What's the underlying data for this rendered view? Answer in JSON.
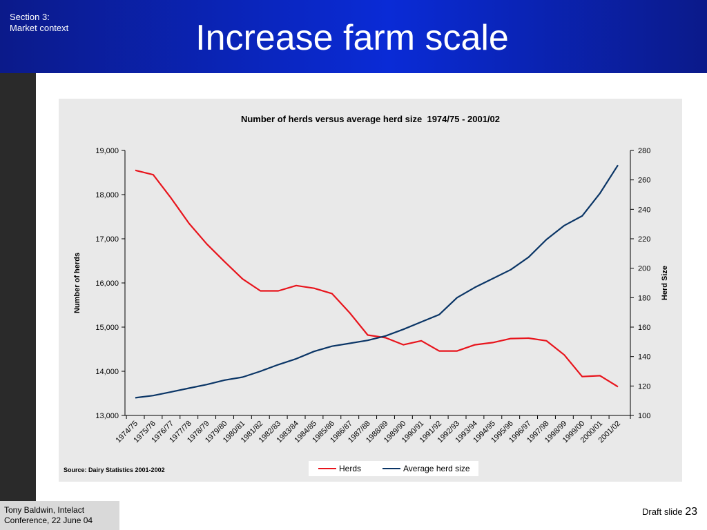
{
  "slide": {
    "section_label": "Section 3:\nMarket context",
    "title": "Increase farm scale",
    "footer": "Tony Baldwin, Intelact\nConference, 22 June 04",
    "draft_label": "Draft slide",
    "page_number": "23"
  },
  "chart_data": {
    "type": "line",
    "title": "Number of herds versus average herd size  1974/75 - 2001/02",
    "categories": [
      "1974/75",
      "1975/76",
      "1976/77",
      "1977/78",
      "1978/79",
      "1979/80",
      "1980/81",
      "1981/82",
      "1982/83",
      "1983/84",
      "1984/85",
      "1985/86",
      "1986/87",
      "1987/88",
      "1988/89",
      "1989/90",
      "1990/91",
      "1991/92",
      "1992/93",
      "1993/94",
      "1994/95",
      "1995/96",
      "1996/97",
      "1997/98",
      "1998/99",
      "1999/00",
      "2000/01",
      "2001/02"
    ],
    "y_left": {
      "label": "Number of herds",
      "min": 13000,
      "max": 19000,
      "ticks": [
        "13,000",
        "14,000",
        "15,000",
        "16,000",
        "17,000",
        "18,000",
        "19,000"
      ]
    },
    "y_right": {
      "label": "Herd Size",
      "min": 100,
      "max": 280,
      "ticks": [
        "100",
        "120",
        "140",
        "160",
        "180",
        "200",
        "220",
        "240",
        "260",
        "280"
      ]
    },
    "series": [
      {
        "name": "Herds",
        "axis": "left",
        "color": "#e8141c",
        "values": [
          18550,
          18450,
          17920,
          17350,
          16880,
          16480,
          16090,
          15820,
          15820,
          15940,
          15880,
          15760,
          15320,
          14820,
          14760,
          14600,
          14690,
          14460,
          14460,
          14600,
          14650,
          14740,
          14750,
          14690,
          14370,
          13880,
          13900,
          13650
        ]
      },
      {
        "name": "Average herd size",
        "axis": "right",
        "color": "#0a3566",
        "values": [
          112,
          113.5,
          116,
          118.5,
          121,
          124,
          126,
          130,
          134.5,
          138.5,
          143.5,
          147,
          149,
          151,
          154,
          158.5,
          163.5,
          168.5,
          180,
          187,
          193,
          199,
          207.5,
          219.5,
          229,
          235.5,
          251,
          270
        ]
      }
    ],
    "grid": false,
    "legend": "bottom-center",
    "source": "Source:  Dairy Statistics 2001-2002"
  }
}
